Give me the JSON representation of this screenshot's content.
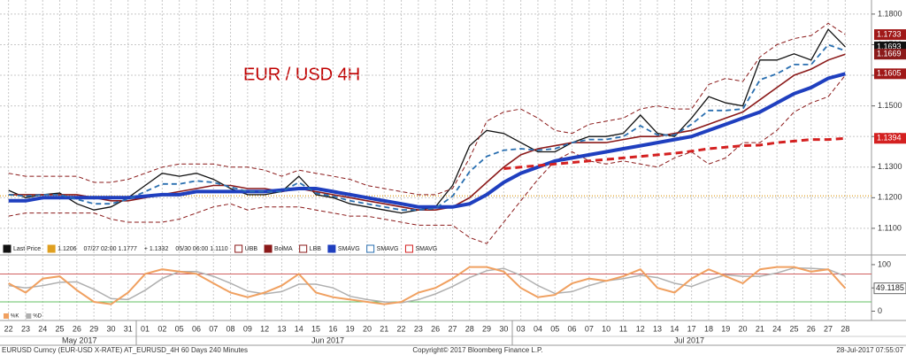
{
  "chart_data": [
    {
      "type": "line",
      "title": "EUR / USD 4H",
      "categories": [
        "22",
        "23",
        "24",
        "25",
        "26",
        "29",
        "30",
        "31",
        "01",
        "02",
        "05",
        "06",
        "07",
        "08",
        "09",
        "12",
        "13",
        "14",
        "15",
        "16",
        "19",
        "20",
        "21",
        "22",
        "23",
        "26",
        "27",
        "28",
        "29",
        "30",
        "03",
        "04",
        "05",
        "06",
        "07",
        "10",
        "11",
        "12",
        "13",
        "14",
        "17",
        "18",
        "19",
        "20",
        "21",
        "24",
        "25",
        "26",
        "27",
        "28"
      ],
      "month_labels": [
        "May 2017",
        "Jun 2017",
        "Jul 2017"
      ],
      "series": [
        {
          "name": "Last Price",
          "color": "#111111",
          "width": 1.3,
          "dash": "",
          "values": [
            1.1224,
            1.12,
            1.121,
            1.1215,
            1.118,
            1.116,
            1.117,
            1.12,
            1.124,
            1.128,
            1.127,
            1.128,
            1.126,
            1.123,
            1.121,
            1.121,
            1.122,
            1.127,
            1.121,
            1.12,
            1.118,
            1.117,
            1.116,
            1.115,
            1.116,
            1.117,
            1.124,
            1.137,
            1.142,
            1.141,
            1.138,
            1.135,
            1.135,
            1.138,
            1.14,
            1.14,
            1.141,
            1.147,
            1.141,
            1.14,
            1.146,
            1.153,
            1.151,
            1.15,
            1.165,
            1.165,
            1.167,
            1.165,
            1.175,
            1.1693
          ]
        },
        {
          "name": "UBB",
          "color": "#8b1a1a",
          "width": 1,
          "dash": "5 3",
          "values": [
            1.128,
            1.127,
            1.127,
            1.127,
            1.127,
            1.125,
            1.125,
            1.126,
            1.128,
            1.13,
            1.131,
            1.131,
            1.131,
            1.13,
            1.13,
            1.129,
            1.127,
            1.129,
            1.128,
            1.127,
            1.126,
            1.124,
            1.123,
            1.122,
            1.121,
            1.121,
            1.123,
            1.133,
            1.145,
            1.148,
            1.149,
            1.146,
            1.142,
            1.141,
            1.144,
            1.145,
            1.146,
            1.149,
            1.15,
            1.149,
            1.149,
            1.157,
            1.159,
            1.158,
            1.166,
            1.17,
            1.172,
            1.173,
            1.177,
            1.1733
          ]
        },
        {
          "name": "BolMA",
          "color": "#8b1a1a",
          "width": 1.6,
          "dash": "",
          "values": [
            1.121,
            1.121,
            1.121,
            1.121,
            1.121,
            1.12,
            1.119,
            1.119,
            1.12,
            1.121,
            1.122,
            1.123,
            1.124,
            1.124,
            1.123,
            1.123,
            1.122,
            1.123,
            1.122,
            1.121,
            1.12,
            1.119,
            1.118,
            1.117,
            1.116,
            1.116,
            1.117,
            1.12,
            1.125,
            1.13,
            1.134,
            1.136,
            1.137,
            1.138,
            1.138,
            1.138,
            1.139,
            1.14,
            1.14,
            1.141,
            1.142,
            1.144,
            1.146,
            1.148,
            1.152,
            1.156,
            1.16,
            1.162,
            1.165,
            1.1669
          ]
        },
        {
          "name": "LBB",
          "color": "#8b1a1a",
          "width": 1,
          "dash": "5 3",
          "values": [
            1.114,
            1.115,
            1.115,
            1.115,
            1.115,
            1.115,
            1.113,
            1.112,
            1.112,
            1.112,
            1.113,
            1.115,
            1.117,
            1.118,
            1.116,
            1.117,
            1.117,
            1.117,
            1.116,
            1.115,
            1.114,
            1.114,
            1.113,
            1.112,
            1.111,
            1.111,
            1.111,
            1.107,
            1.105,
            1.112,
            1.119,
            1.126,
            1.132,
            1.135,
            1.132,
            1.131,
            1.132,
            1.131,
            1.13,
            1.133,
            1.135,
            1.131,
            1.133,
            1.138,
            1.138,
            1.142,
            1.148,
            1.151,
            1.153,
            1.16
          ]
        },
        {
          "name": "SMAVG",
          "color": "#1f3fbf",
          "width": 4,
          "dash": "",
          "values": [
            1.119,
            1.119,
            1.12,
            1.12,
            1.12,
            1.12,
            1.12,
            1.12,
            1.1205,
            1.121,
            1.121,
            1.122,
            1.122,
            1.122,
            1.122,
            1.122,
            1.1225,
            1.123,
            1.123,
            1.122,
            1.121,
            1.12,
            1.119,
            1.118,
            1.117,
            1.117,
            1.117,
            1.118,
            1.121,
            1.125,
            1.128,
            1.13,
            1.132,
            1.133,
            1.134,
            1.135,
            1.136,
            1.137,
            1.138,
            1.139,
            1.14,
            1.142,
            1.144,
            1.146,
            1.148,
            1.151,
            1.154,
            1.156,
            1.159,
            1.1605
          ]
        },
        {
          "name": "SMAVG",
          "color": "#2a6fb0",
          "width": 1.8,
          "dash": "6 4",
          "values": [
            1.121,
            1.1205,
            1.121,
            1.121,
            1.1195,
            1.118,
            1.118,
            1.1195,
            1.122,
            1.1245,
            1.1245,
            1.1255,
            1.125,
            1.1235,
            1.122,
            1.122,
            1.122,
            1.125,
            1.1215,
            1.1205,
            1.119,
            1.118,
            1.117,
            1.116,
            1.116,
            1.1165,
            1.1205,
            1.1285,
            1.1335,
            1.1355,
            1.136,
            1.1355,
            1.136,
            1.138,
            1.139,
            1.139,
            1.14,
            1.1435,
            1.1405,
            1.1405,
            1.144,
            1.1485,
            1.1485,
            1.149,
            1.1585,
            1.1605,
            1.1635,
            1.1635,
            1.17,
            1.168
          ]
        },
        {
          "name": "SMAVG",
          "color": "#d42020",
          "width": 3,
          "dash": "8 5",
          "values": [
            null,
            null,
            null,
            null,
            null,
            null,
            null,
            null,
            null,
            null,
            null,
            null,
            null,
            null,
            null,
            null,
            null,
            null,
            null,
            null,
            null,
            null,
            null,
            null,
            null,
            null,
            null,
            null,
            null,
            1.1295,
            1.13,
            1.1305,
            1.131,
            1.1315,
            1.132,
            1.1325,
            1.133,
            1.1335,
            1.134,
            1.1345,
            1.1352,
            1.136,
            1.1365,
            1.137,
            1.1372,
            1.138,
            1.1385,
            1.139,
            1.139,
            1.1394
          ]
        }
      ],
      "legend_stats": [
        "1.1206",
        "07/27 02:00 1.1777",
        "+ 1.1332",
        "05/30 06:00 1.1110"
      ],
      "hline": 1.1206,
      "hline_color": "#e0a020",
      "price_labels": [
        {
          "value": 1.1733,
          "color": "#a01818"
        },
        {
          "value": 1.1693,
          "color": "#111111"
        },
        {
          "value": 1.1669,
          "color": "#8b1a1a"
        },
        {
          "value": 1.1605,
          "color": "#a01818"
        },
        {
          "value": 1.1394,
          "color": "#d42020"
        }
      ],
      "ylim": [
        1.1065,
        1.1846
      ],
      "yticks": [
        {
          "value": 1.11,
          "label": "1.1100"
        },
        {
          "value": 1.12,
          "label": "1.1200"
        },
        {
          "value": 1.13,
          "label": "1.1300"
        },
        {
          "value": 1.14,
          "label": "1.1400"
        },
        {
          "value": 1.15,
          "label": "1.1500"
        },
        {
          "value": 1.16,
          "label": "1.1600"
        },
        {
          "value": 1.17,
          "label": "1.1700"
        },
        {
          "value": 1.18,
          "label": "1.1800"
        }
      ],
      "grid": true
    },
    {
      "type": "oscillator",
      "series": [
        {
          "name": "%K",
          "color": "#f0a060",
          "values": [
            60,
            40,
            70,
            75,
            45,
            20,
            15,
            40,
            80,
            90,
            85,
            80,
            60,
            40,
            30,
            40,
            55,
            80,
            40,
            30,
            25,
            20,
            15,
            20,
            40,
            50,
            70,
            95,
            95,
            85,
            50,
            30,
            35,
            60,
            70,
            65,
            75,
            90,
            50,
            40,
            70,
            90,
            75,
            60,
            90,
            95,
            95,
            85,
            90,
            49.1185
          ]
        },
        {
          "name": "%D",
          "color": "#b0b0b0",
          "values": [
            55,
            50,
            55,
            62,
            63,
            47,
            27,
            25,
            45,
            70,
            85,
            85,
            75,
            60,
            43,
            37,
            42,
            58,
            58,
            50,
            32,
            25,
            20,
            18,
            25,
            37,
            53,
            72,
            87,
            92,
            77,
            55,
            38,
            42,
            55,
            65,
            70,
            77,
            72,
            60,
            53,
            67,
            78,
            75,
            75,
            82,
            93,
            92,
            90,
            75
          ]
        }
      ],
      "levels": [
        {
          "value": 80,
          "color": "#d06060"
        },
        {
          "value": 20,
          "color": "#60c060"
        }
      ],
      "last_label": "49.1185",
      "ylim": [
        -20,
        117
      ],
      "yticks": [
        0,
        50,
        100
      ]
    }
  ],
  "footer": {
    "left": "EURUSD Curncy (EUR-USD X-RATE) AT_EURUSD_4H 60 Days 240 Minutes",
    "center": "Copyright© 2017 Bloomberg Finance L.P.",
    "right": "28-Jul-2017 07:55:07"
  }
}
